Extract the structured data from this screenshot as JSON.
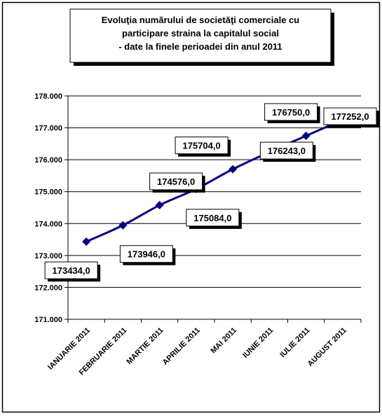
{
  "chart_data": {
    "type": "line",
    "title_lines": [
      "Evoluţia numărului de societăţi comerciale cu",
      "participare straina la capitalul social",
      "- date la finele perioadei din anul 2011"
    ],
    "categories": [
      "IANUARIE 2011",
      "FEBRUARIE 2011",
      "MARTIE 2011",
      "APRILIE 2011",
      "MAI 2011",
      "IUNIE 2011",
      "IULIE 2011",
      "AUGUST 2011"
    ],
    "values": [
      173434.0,
      173946.0,
      174576.0,
      175084.0,
      175704.0,
      176243.0,
      176750.0,
      177252.0
    ],
    "data_labels": [
      "173434,0",
      "173946,0",
      "174576,0",
      "175084,0",
      "175704,0",
      "176243,0",
      "176750,0",
      "177252,0"
    ],
    "ylim": [
      171000,
      178000
    ],
    "yticks": [
      171000,
      172000,
      173000,
      174000,
      175000,
      176000,
      177000,
      178000
    ],
    "ytick_labels": [
      "171.000",
      "172.000",
      "173.000",
      "174.000",
      "175.000",
      "176.000",
      "177.000",
      "178.000"
    ],
    "grid": true,
    "legend": "none",
    "line_color": "#000080"
  }
}
